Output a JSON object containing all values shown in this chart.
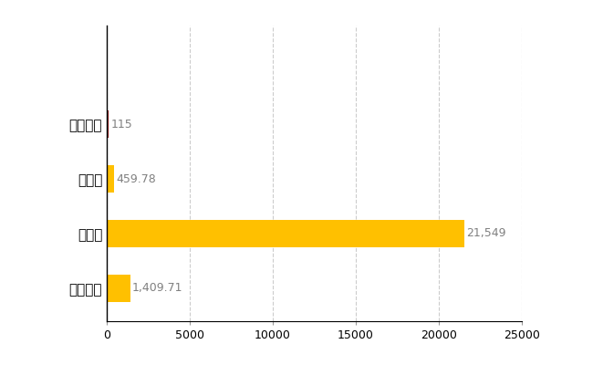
{
  "categories": [
    "全国平均",
    "県最大",
    "県平均",
    "上士幌町"
  ],
  "values": [
    1409.71,
    21549,
    459.78,
    115
  ],
  "bar_colors": [
    "#FFC000",
    "#FFC000",
    "#FFC000",
    "#8B0000"
  ],
  "value_labels": [
    "1,409.71",
    "21,549",
    "459.78",
    "115"
  ],
  "xlim": [
    0,
    25000
  ],
  "xticks": [
    0,
    5000,
    10000,
    15000,
    20000,
    25000
  ],
  "grid_color": "#CCCCCC",
  "background_color": "#FFFFFF",
  "label_color": "#808080",
  "label_fontsize": 9,
  "tick_fontsize": 9,
  "yticklabel_fontsize": 11
}
